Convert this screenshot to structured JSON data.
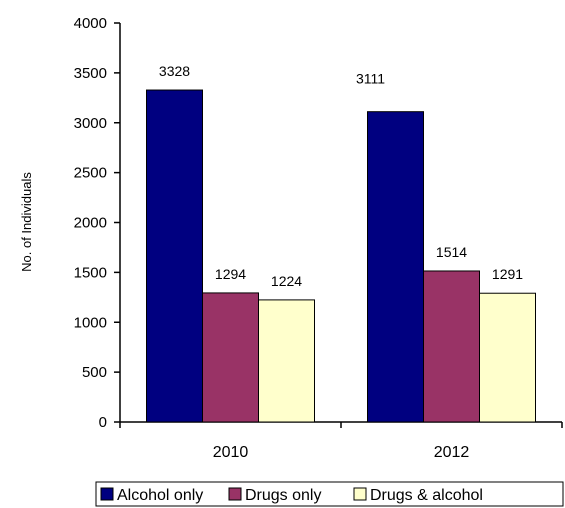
{
  "chart_data": {
    "type": "bar",
    "categories": [
      "2010",
      "2012"
    ],
    "series": [
      {
        "name": "Alcohol only",
        "values": [
          3328,
          3111
        ],
        "color": "#000080"
      },
      {
        "name": "Drugs only",
        "values": [
          1294,
          1514
        ],
        "color": "#993366"
      },
      {
        "name": "Drugs & alcohol",
        "values": [
          1224,
          1291
        ],
        "color": "#FFFFCC"
      }
    ],
    "title": "",
    "xlabel": "",
    "ylabel": "No. of Individuals",
    "ylim": [
      0,
      4000
    ],
    "yticks": [
      0,
      500,
      1000,
      1500,
      2000,
      2500,
      3000,
      3500,
      4000
    ],
    "grid": false,
    "legend_position": "bottom"
  }
}
